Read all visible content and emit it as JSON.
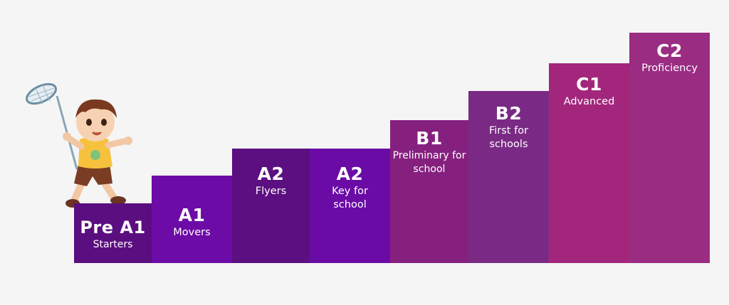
{
  "steps": [
    {
      "level": "Pre A1",
      "exam": "Starters",
      "color": "#5b0e80"
    },
    {
      "level": "A1",
      "exam": "Movers",
      "color": "#6d0ba6"
    },
    {
      "level": "A2",
      "exam": "Flyers",
      "color": "#5c0f80"
    },
    {
      "level": "A2",
      "exam": "Key for school",
      "color": "#6a0ba6"
    },
    {
      "level": "B1",
      "exam": "Preliminary for school",
      "color": "#86207f"
    },
    {
      "level": "B2",
      "exam": "First for schools",
      "color": "#7a2a84"
    },
    {
      "level": "C1",
      "exam": "Advanced",
      "color": "#a2267c"
    },
    {
      "level": "C2",
      "exam": "Proficiency",
      "color": "#9a2c82"
    }
  ],
  "illustration": {
    "name": "boy-with-butterfly-net-illustration"
  }
}
